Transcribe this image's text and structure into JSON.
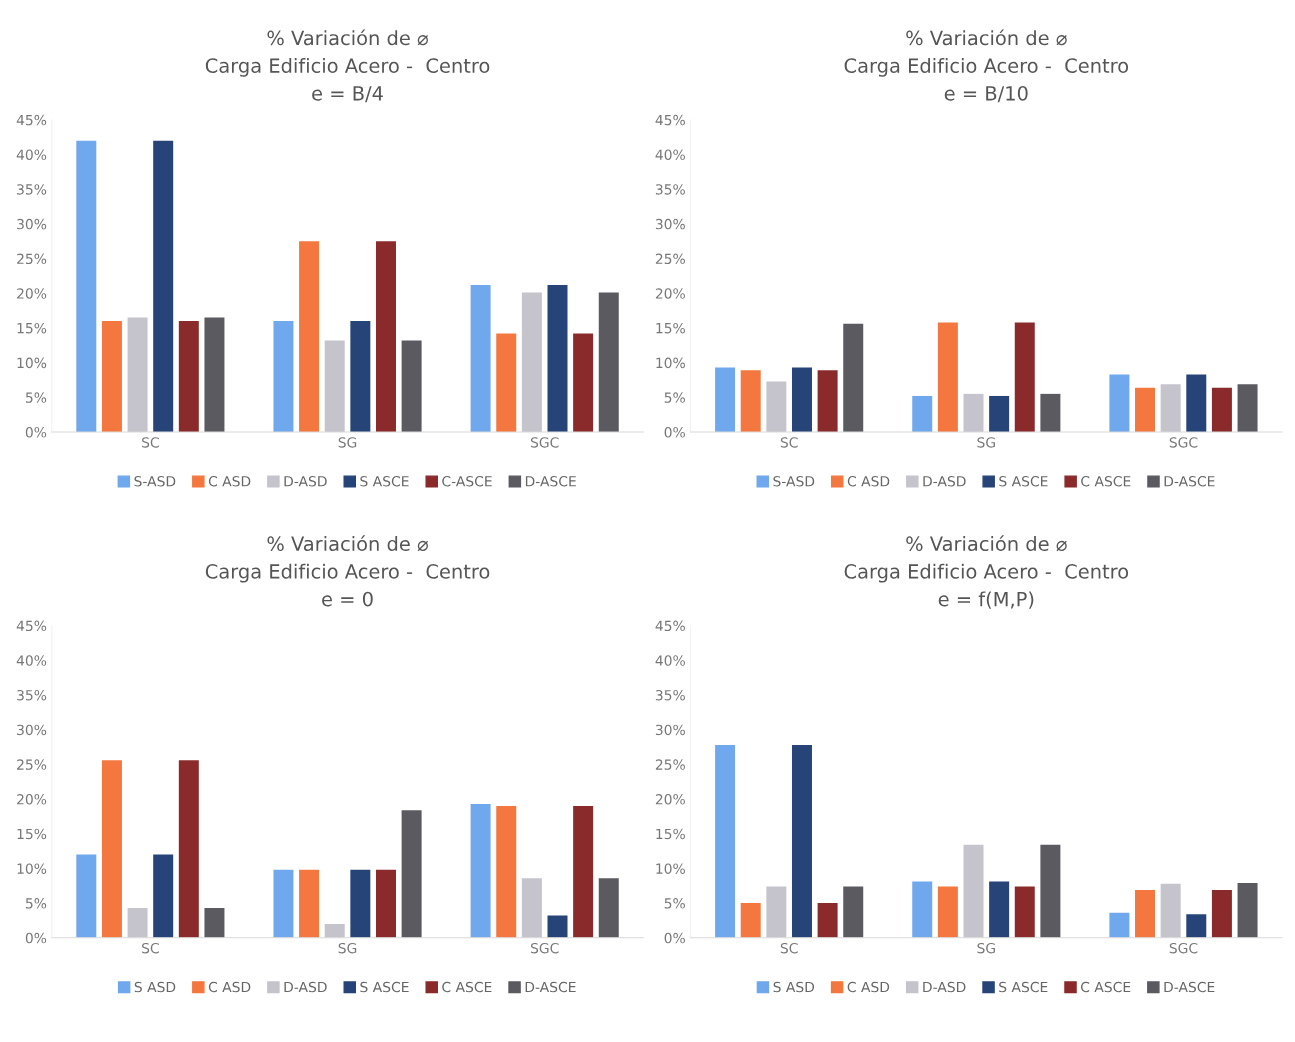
{
  "chart_data": [
    {
      "type": "bar",
      "title": "% Variación de ⌀\nCarga Edificio Acero -  Centro\ne = B/4",
      "categories": [
        "SC",
        "SG",
        "SGC"
      ],
      "ylim": [
        0,
        45
      ],
      "yticks": [
        {
          "value": 0,
          "label": "0%"
        },
        {
          "value": 5,
          "label": "5%"
        },
        {
          "value": 10,
          "label": "10%"
        },
        {
          "value": 15,
          "label": "15%"
        },
        {
          "value": 20,
          "label": "20%"
        },
        {
          "value": 25,
          "label": "25%"
        },
        {
          "value": 30,
          "label": "30%"
        },
        {
          "value": 35,
          "label": "35%"
        },
        {
          "value": 40,
          "label": "40%"
        },
        {
          "value": 45,
          "label": "45%"
        }
      ],
      "grid": false,
      "legend": "bottom",
      "series": [
        {
          "name": "S-ASD",
          "color": "#6fa8ec",
          "values": [
            42.0,
            16.0,
            21.2
          ]
        },
        {
          "name": "C ASD",
          "color": "#f4773f",
          "values": [
            16.0,
            27.5,
            14.2
          ]
        },
        {
          "name": "D-ASD",
          "color": "#c5c3cc",
          "values": [
            16.5,
            13.2,
            20.1
          ]
        },
        {
          "name": "S ASCE",
          "color": "#264478",
          "values": [
            42.0,
            16.0,
            21.2
          ]
        },
        {
          "name": "C-ASCE",
          "color": "#8b2a2a",
          "values": [
            16.0,
            27.5,
            14.2
          ]
        },
        {
          "name": "D-ASCE",
          "color": "#5a5a60",
          "values": [
            16.5,
            13.2,
            20.1
          ]
        }
      ]
    },
    {
      "type": "bar",
      "title": "% Variación de ⌀\nCarga Edificio Acero -  Centro\ne = B/10",
      "categories": [
        "SC",
        "SG",
        "SGC"
      ],
      "ylim": [
        0,
        45
      ],
      "yticks": [
        {
          "value": 0,
          "label": "0%"
        },
        {
          "value": 5,
          "label": "5%"
        },
        {
          "value": 10,
          "label": "10%"
        },
        {
          "value": 15,
          "label": "15%"
        },
        {
          "value": 20,
          "label": "20%"
        },
        {
          "value": 25,
          "label": "25%"
        },
        {
          "value": 30,
          "label": "30%"
        },
        {
          "value": 35,
          "label": "35%"
        },
        {
          "value": 40,
          "label": "40%"
        },
        {
          "value": 45,
          "label": "45%"
        }
      ],
      "grid": false,
      "legend": "bottom",
      "series": [
        {
          "name": "S-ASD",
          "color": "#6fa8ec",
          "values": [
            9.3,
            5.2,
            8.3
          ]
        },
        {
          "name": "C ASD",
          "color": "#f4773f",
          "values": [
            8.9,
            15.8,
            6.4
          ]
        },
        {
          "name": "D-ASD",
          "color": "#c5c3cc",
          "values": [
            7.3,
            5.5,
            6.9
          ]
        },
        {
          "name": "S ASCE",
          "color": "#264478",
          "values": [
            9.3,
            5.2,
            8.3
          ]
        },
        {
          "name": "C ASCE",
          "color": "#8b2a2a",
          "values": [
            8.9,
            15.8,
            6.4
          ]
        },
        {
          "name": "D-ASCE",
          "color": "#5a5a60",
          "values": [
            15.6,
            5.5,
            6.9
          ]
        }
      ]
    },
    {
      "type": "bar",
      "title": "% Variación de ⌀\nCarga Edificio Acero -  Centro\ne = 0",
      "categories": [
        "SC",
        "SG",
        "SGC"
      ],
      "ylim": [
        0,
        45
      ],
      "yticks": [
        {
          "value": 0,
          "label": "0%"
        },
        {
          "value": 5,
          "label": "5%"
        },
        {
          "value": 10,
          "label": "10%"
        },
        {
          "value": 15,
          "label": "15%"
        },
        {
          "value": 20,
          "label": "20%"
        },
        {
          "value": 25,
          "label": "25%"
        },
        {
          "value": 30,
          "label": "30%"
        },
        {
          "value": 35,
          "label": "35%"
        },
        {
          "value": 40,
          "label": "40%"
        },
        {
          "value": 45,
          "label": "45%"
        }
      ],
      "grid": false,
      "legend": "bottom",
      "series": [
        {
          "name": "S ASD",
          "color": "#6fa8ec",
          "values": [
            12.0,
            9.8,
            19.3
          ]
        },
        {
          "name": "C ASD",
          "color": "#f4773f",
          "values": [
            25.6,
            9.8,
            19.0
          ]
        },
        {
          "name": "D-ASD",
          "color": "#c5c3cc",
          "values": [
            4.3,
            2.0,
            8.6
          ]
        },
        {
          "name": "S ASCE",
          "color": "#264478",
          "values": [
            12.0,
            9.8,
            3.2
          ]
        },
        {
          "name": "C ASCE",
          "color": "#8b2a2a",
          "values": [
            25.6,
            9.8,
            19.0
          ]
        },
        {
          "name": "D-ASCE",
          "color": "#5a5a60",
          "values": [
            4.3,
            18.4,
            8.6
          ]
        }
      ]
    },
    {
      "type": "bar",
      "title": "% Variación de ⌀\nCarga Edificio Acero -  Centro\ne = f(M,P)",
      "categories": [
        "SC",
        "SG",
        "SGC"
      ],
      "ylim": [
        0,
        45
      ],
      "yticks": [
        {
          "value": 0,
          "label": "0%"
        },
        {
          "value": 5,
          "label": "5%"
        },
        {
          "value": 10,
          "label": "10%"
        },
        {
          "value": 15,
          "label": "15%"
        },
        {
          "value": 20,
          "label": "20%"
        },
        {
          "value": 25,
          "label": "25%"
        },
        {
          "value": 30,
          "label": "30%"
        },
        {
          "value": 35,
          "label": "35%"
        },
        {
          "value": 40,
          "label": "40%"
        },
        {
          "value": 45,
          "label": "45%"
        }
      ],
      "grid": false,
      "legend": "bottom",
      "series": [
        {
          "name": "S ASD",
          "color": "#6fa8ec",
          "values": [
            27.8,
            8.1,
            3.6
          ]
        },
        {
          "name": "C ASD",
          "color": "#f4773f",
          "values": [
            5.0,
            7.4,
            6.9
          ]
        },
        {
          "name": "D-ASD",
          "color": "#c5c3cc",
          "values": [
            7.4,
            13.4,
            7.8
          ]
        },
        {
          "name": "S ASCE",
          "color": "#264478",
          "values": [
            27.8,
            8.1,
            3.4
          ]
        },
        {
          "name": "C ASCE",
          "color": "#8b2a2a",
          "values": [
            5.0,
            7.4,
            6.9
          ]
        },
        {
          "name": "D-ASCE",
          "color": "#5a5a60",
          "values": [
            7.4,
            13.4,
            7.9
          ]
        }
      ]
    }
  ]
}
